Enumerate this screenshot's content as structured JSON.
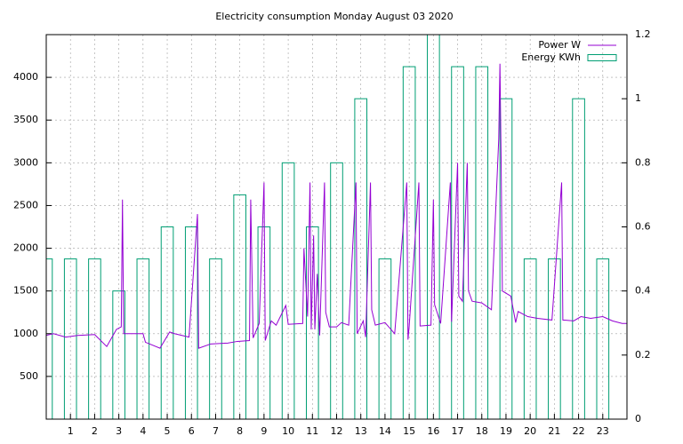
{
  "chart_data": {
    "type": "line-box",
    "title": "Electricity consumption Monday August 03 2020",
    "legend": "top right",
    "grid": true,
    "xlim": [
      0,
      24
    ],
    "xticks": [
      1,
      2,
      3,
      4,
      5,
      6,
      7,
      8,
      9,
      10,
      11,
      12,
      13,
      14,
      15,
      16,
      17,
      18,
      19,
      20,
      21,
      22,
      23
    ],
    "ylim": [
      0,
      4500
    ],
    "yticks": [
      500,
      1000,
      1500,
      2000,
      2500,
      3000,
      3500,
      4000
    ],
    "y2lim": [
      0,
      1.2
    ],
    "y2ticks": [
      0,
      0.2,
      0.4,
      0.6,
      0.8,
      1,
      1.2
    ],
    "series": [
      {
        "name": "Power W",
        "color": "#9400d3",
        "style": "line",
        "x": [
          0,
          0.3,
          0.8,
          1.3,
          2,
          2.5,
          2.9,
          3.1,
          3.15,
          3.2,
          3.5,
          4,
          4.1,
          4.7,
          5.1,
          5.3,
          5.9,
          6.25,
          6.3,
          6.8,
          7.5,
          7.9,
          8.4,
          8.45,
          8.55,
          8.8,
          9,
          9.05,
          9.3,
          9.5,
          9.9,
          10,
          10.6,
          10.65,
          10.8,
          10.9,
          10.95,
          11.05,
          11.1,
          11.2,
          11.3,
          11.5,
          11.55,
          11.7,
          12,
          12.2,
          12.5,
          12.8,
          12.85,
          13.1,
          13.2,
          13.4,
          13.45,
          13.6,
          14,
          14.4,
          14.9,
          14.95,
          15,
          15.4,
          15.45,
          15.9,
          16,
          16.05,
          16.3,
          16.7,
          16.75,
          17,
          17.05,
          17.2,
          17.4,
          17.45,
          17.6,
          18,
          18.4,
          18.7,
          18.75,
          18.8,
          18.85,
          19.2,
          19.4,
          19.5,
          19.9,
          20.3,
          20.9,
          21.3,
          21.35,
          21.8,
          22.1,
          22.5,
          23,
          23.4,
          23.8,
          24
        ],
        "values": [
          980,
          1000,
          960,
          980,
          990,
          850,
          1050,
          1080,
          2570,
          1000,
          1000,
          1000,
          900,
          830,
          1020,
          1000,
          960,
          2400,
          830,
          880,
          890,
          910,
          920,
          2570,
          950,
          1120,
          2770,
          920,
          1150,
          1100,
          1330,
          1110,
          1120,
          2000,
          1200,
          2770,
          1050,
          2150,
          1050,
          1700,
          980,
          2770,
          1250,
          1080,
          1080,
          1130,
          1100,
          2770,
          1000,
          1150,
          960,
          2770,
          1280,
          1100,
          1130,
          1000,
          2770,
          930,
          1090,
          2770,
          1090,
          1100,
          2570,
          1340,
          1120,
          2770,
          1140,
          3000,
          1440,
          1380,
          3000,
          1500,
          1380,
          1360,
          1280,
          3280,
          4160,
          3000,
          1500,
          1440,
          1130,
          1260,
          1200,
          1180,
          1160,
          2770,
          1160,
          1150,
          1200,
          1180,
          1200,
          1150,
          1120,
          1120
        ]
      },
      {
        "name": "Energy KWh",
        "color": "#009e73",
        "style": "boxes",
        "axis": "y2",
        "x": [
          0,
          1,
          2,
          3,
          4,
          5,
          6,
          7,
          8,
          9,
          10,
          11,
          12,
          13,
          14,
          15,
          16,
          17,
          18,
          19,
          20,
          21,
          22,
          23
        ],
        "values": [
          0.5,
          0.5,
          0.5,
          0.4,
          0.5,
          0.6,
          0.6,
          0.5,
          0.7,
          0.6,
          0.8,
          0.6,
          0.8,
          1.0,
          0.5,
          1.1,
          1.2,
          1.1,
          1.1,
          1.0,
          0.5,
          0.5,
          1.0,
          0.5
        ]
      }
    ]
  }
}
